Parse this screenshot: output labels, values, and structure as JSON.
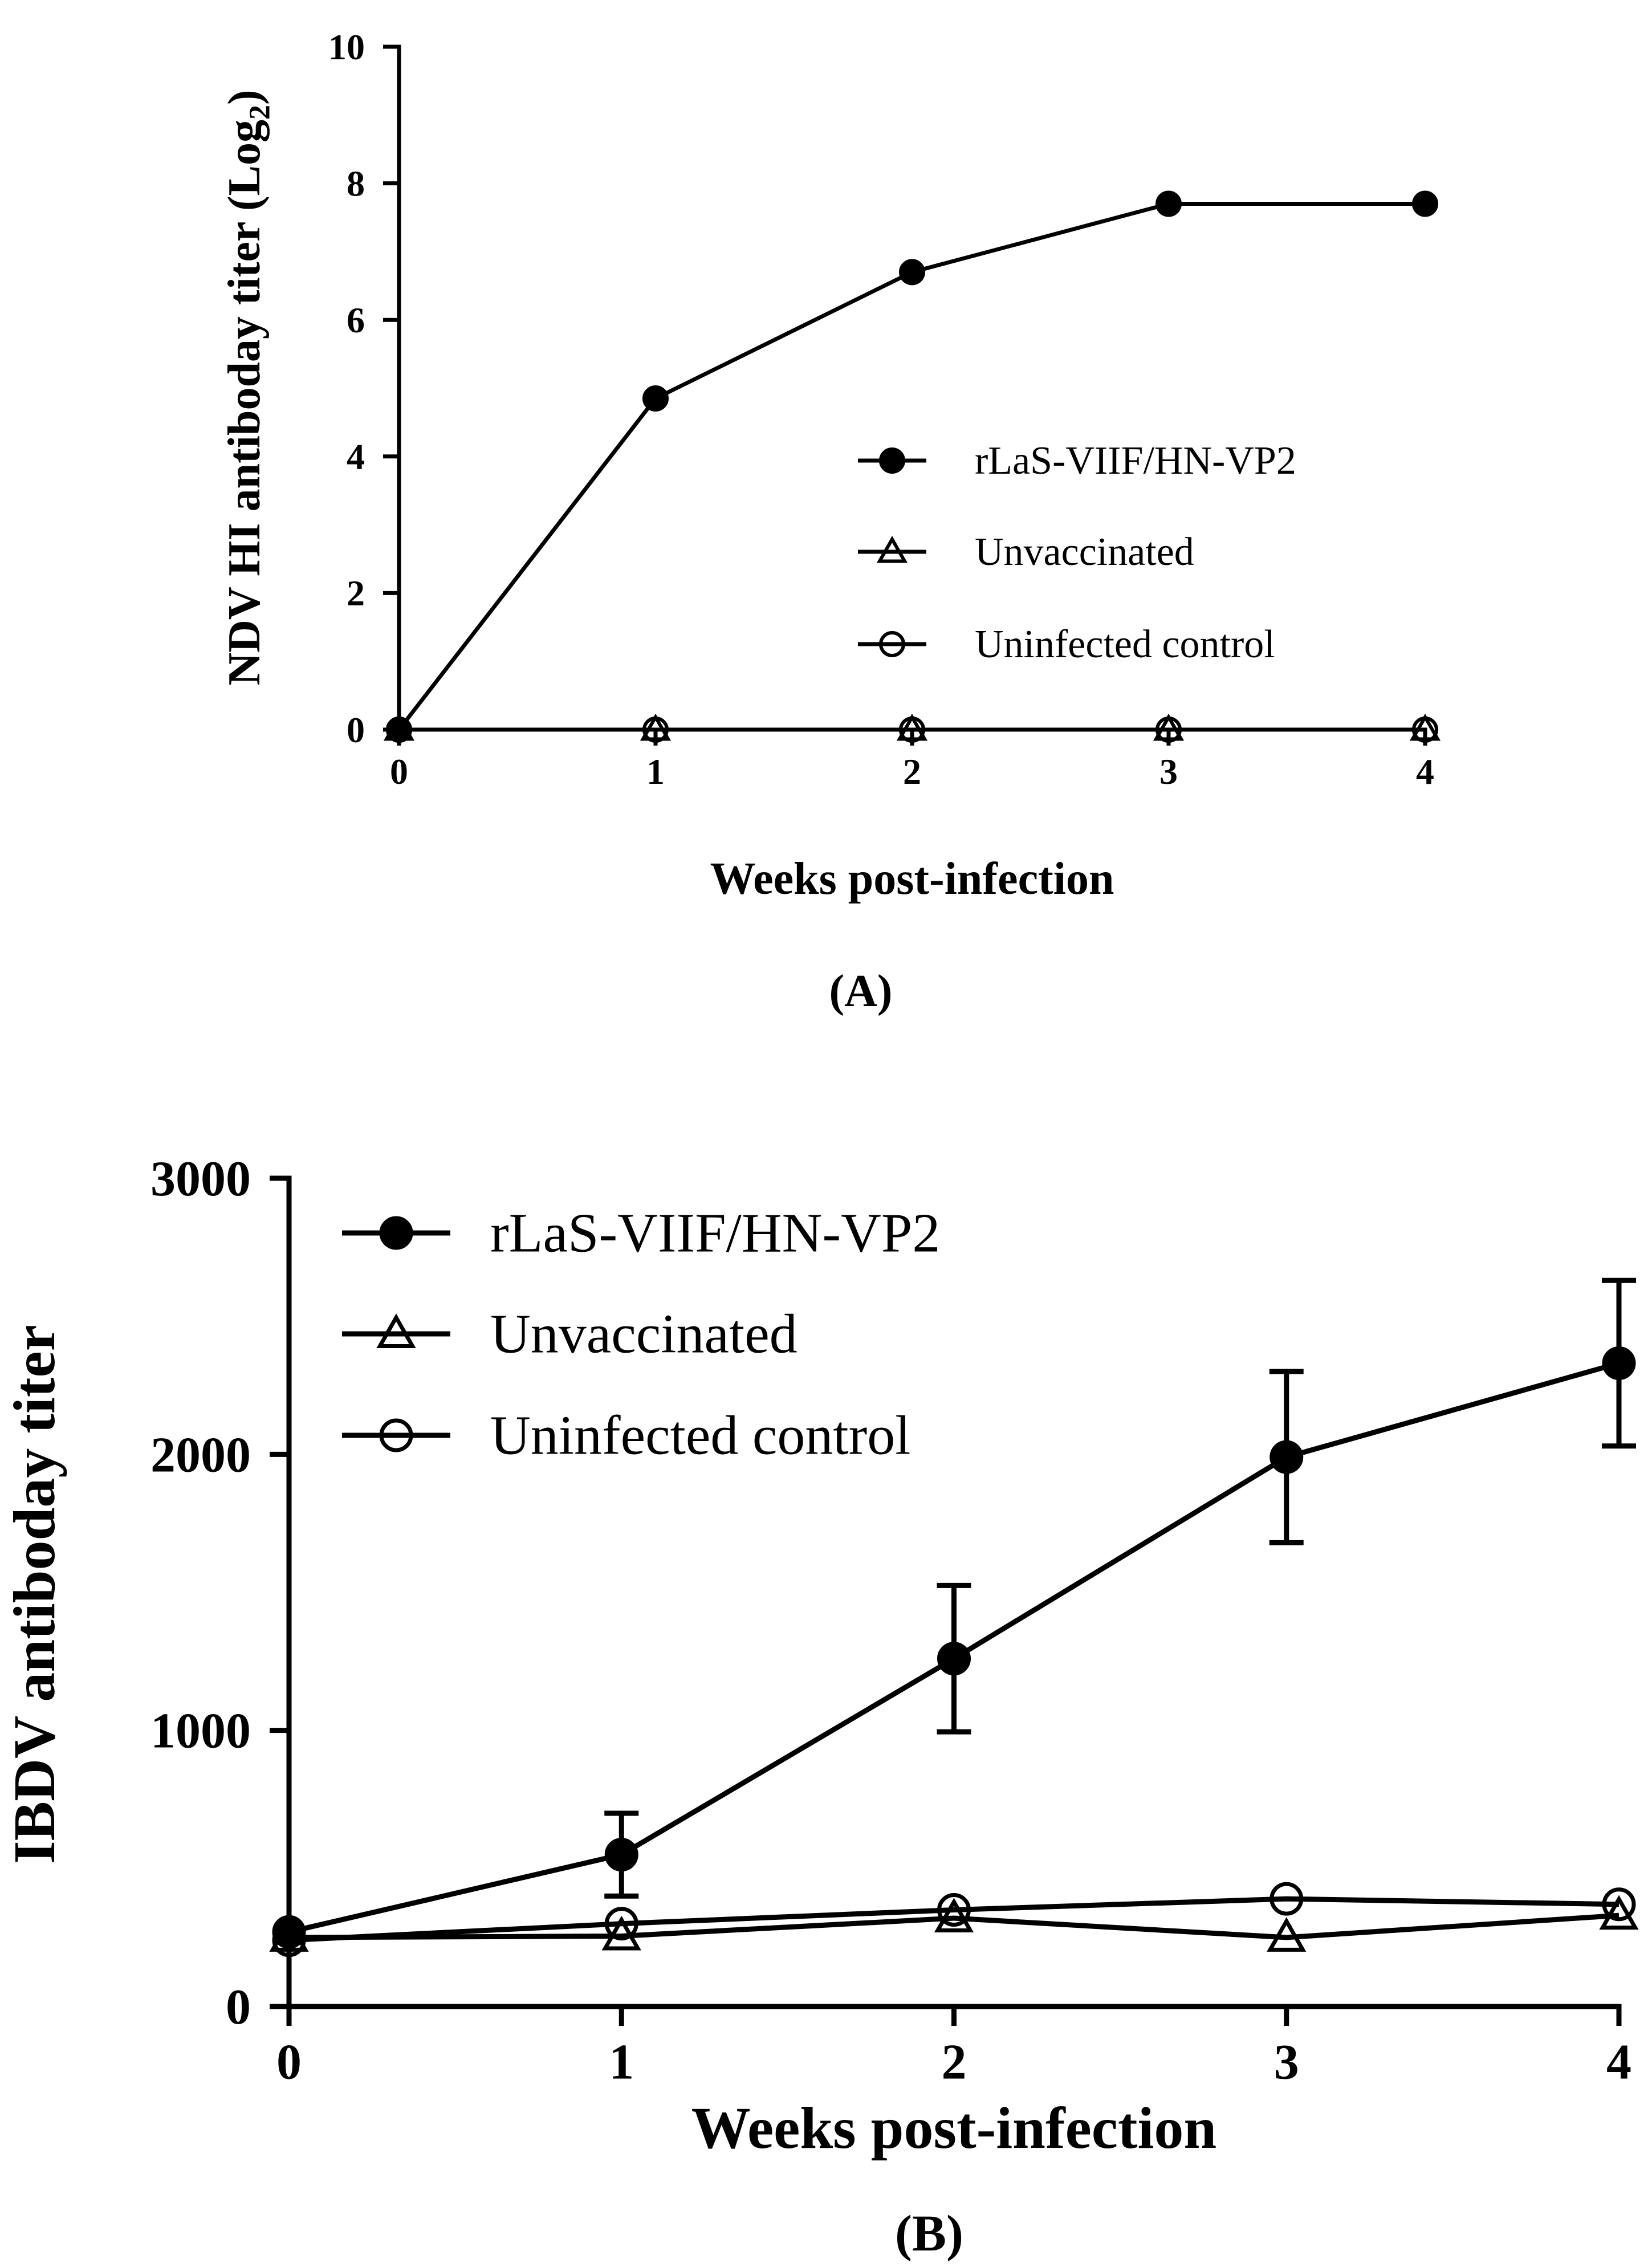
{
  "colors": {
    "ink": "#000000",
    "background": "#ffffff"
  },
  "chart_data": [
    {
      "id": "A",
      "type": "line",
      "panel_label": "(A)",
      "title": "",
      "xlabel": "Weeks post-infection",
      "ylabel_main": "NDV HI antiboday titer (Log",
      "ylabel_sub": "2",
      "ylabel_close": ")",
      "x": [
        0,
        1,
        2,
        3,
        4
      ],
      "x_tick_labels": [
        "0",
        "1",
        "2",
        "3",
        "4"
      ],
      "ylim": [
        0,
        10
      ],
      "y_ticks": [
        0,
        2,
        4,
        6,
        8,
        10
      ],
      "y_tick_labels": [
        "0",
        "2",
        "4",
        "6",
        "8",
        "10"
      ],
      "grid": false,
      "legend_position": "center-right",
      "series": [
        {
          "name": "rLaS-VIIF/HN-VP2",
          "marker": "filled-circle",
          "values": [
            0,
            4.85,
            6.7,
            7.7,
            7.7
          ]
        },
        {
          "name": "Unvaccinated",
          "marker": "open-triangle",
          "values": [
            0,
            0,
            0,
            0,
            0
          ]
        },
        {
          "name": "Uninfected control",
          "marker": "open-circle",
          "values": [
            0,
            0,
            0,
            0,
            0
          ]
        }
      ]
    },
    {
      "id": "B",
      "type": "line",
      "panel_label": "(B)",
      "title": "",
      "xlabel": "Weeks post-infection",
      "ylabel_main": "IBDV antiboday titer",
      "ylabel_sub": "",
      "ylabel_close": "",
      "x": [
        0,
        1,
        2,
        3,
        4
      ],
      "x_tick_labels": [
        "0",
        "1",
        "2",
        "3",
        "4"
      ],
      "ylim": [
        0,
        3000
      ],
      "y_ticks": [
        0,
        1000,
        2000,
        3000
      ],
      "y_tick_labels": [
        "0",
        "1000",
        "2000",
        "3000"
      ],
      "grid": false,
      "legend_position": "top-left",
      "series": [
        {
          "name": "rLaS-VIIF/HN-VP2",
          "marker": "filled-circle",
          "values": [
            270,
            550,
            1260,
            1990,
            2330
          ],
          "error": [
            0,
            150,
            265,
            310,
            300
          ]
        },
        {
          "name": "Unvaccinated",
          "marker": "open-triangle",
          "values": [
            250,
            255,
            320,
            250,
            330
          ]
        },
        {
          "name": "Uninfected control",
          "marker": "open-circle",
          "values": [
            240,
            300,
            350,
            390,
            370
          ]
        }
      ]
    }
  ]
}
